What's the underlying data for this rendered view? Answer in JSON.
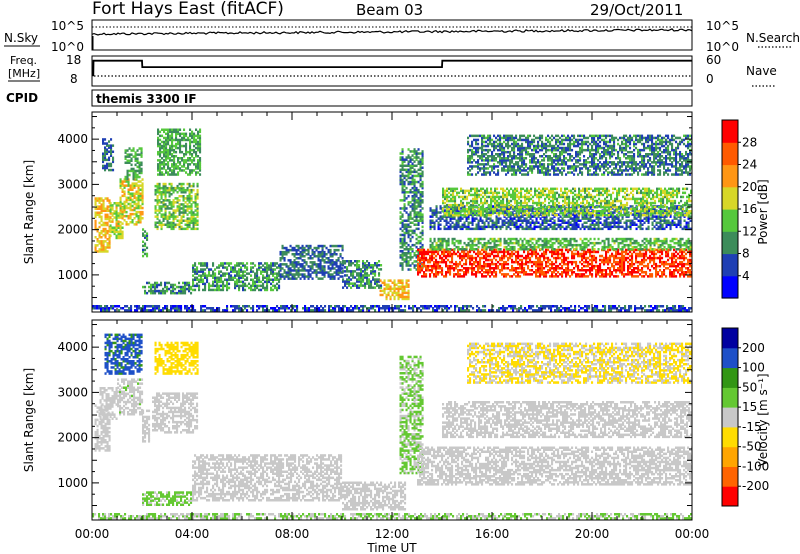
{
  "header": {
    "station": "Fort Hays East (fitACF)",
    "beam": "Beam 03",
    "date": "29/Oct/2011"
  },
  "noise_panel": {
    "left_label": "N.Sky",
    "right_label": "N.Search",
    "tick_top": "10^5",
    "tick_bottom": "10^0"
  },
  "freq_panel": {
    "left_label_1": "Freq.",
    "left_label_2": "[MHz]",
    "right_label": "Nave",
    "left_ticks": [
      "18",
      "8"
    ],
    "right_ticks": [
      "60",
      "0"
    ],
    "cpid_label": "CPID",
    "cpid_text": "themis 3300 IF"
  },
  "colors": {
    "power": [
      "#0000ff",
      "#1f3fb4",
      "#3c8c5a",
      "#55c83c",
      "#d7d728",
      "#ff9614",
      "#ff5a00",
      "#ff0000"
    ],
    "velocity": [
      "#ff0000",
      "#ff6400",
      "#ffa500",
      "#ffdc00",
      "#c8c8c8",
      "#64c832",
      "#329614",
      "#1e50c8",
      "#0000a0"
    ]
  },
  "chart_data": [
    {
      "type": "line",
      "name": "noise-and-frequency",
      "x_range": [
        0,
        24
      ],
      "series": [
        {
          "name": "Freq.",
          "x": [
            0,
            0.05,
            0.06,
            2.0,
            2.01,
            14.0,
            14.01,
            24.0
          ],
          "y": [
            10.0,
            10.0,
            16.8,
            16.8,
            13.8,
            13.8,
            16.8,
            16.8
          ]
        },
        {
          "name": "Nave",
          "x": [
            0,
            24
          ],
          "y": [
            18,
            18
          ]
        }
      ]
    },
    {
      "type": "heatmap",
      "name": "power",
      "xlabel": "Time UT",
      "ylabel": "Slant Range [km]",
      "xlim": [
        0,
        24
      ],
      "ylim": [
        180,
        4600
      ],
      "xticks": [
        "00:00",
        "04:00",
        "08:00",
        "12:00",
        "16:00",
        "20:00",
        "00:00"
      ],
      "yticks": [
        "1000",
        "2000",
        "3000",
        "4000"
      ],
      "colorbar_label": "Power [dB]",
      "colorbar_ticks": [
        "4",
        "8",
        "12",
        "16",
        "20",
        "24",
        "28"
      ],
      "colorbar_range": [
        0,
        32
      ],
      "regions": [
        {
          "t0": 0.1,
          "t1": 0.7,
          "r0": 1500,
          "r1": 2700,
          "value": 20
        },
        {
          "t0": 0.4,
          "t1": 0.8,
          "r0": 3300,
          "r1": 4000,
          "value": 8
        },
        {
          "t0": 0.7,
          "t1": 1.2,
          "r0": 1800,
          "r1": 2600,
          "value": 17
        },
        {
          "t0": 1.1,
          "t1": 2.0,
          "r0": 2100,
          "r1": 3100,
          "value": 18
        },
        {
          "t0": 1.3,
          "t1": 2.0,
          "r0": 3100,
          "r1": 3800,
          "value": 12
        },
        {
          "t0": 2.0,
          "t1": 2.2,
          "r0": 1400,
          "r1": 2000,
          "value": 11
        },
        {
          "t0": 2.5,
          "t1": 4.2,
          "r0": 2000,
          "r1": 3000,
          "value": 14
        },
        {
          "t0": 2.6,
          "t1": 4.3,
          "r0": 3200,
          "r1": 4200,
          "value": 12
        },
        {
          "t0": 2.0,
          "t1": 4.0,
          "r0": 580,
          "r1": 850,
          "value": 10
        },
        {
          "t0": 4.0,
          "t1": 7.5,
          "r0": 650,
          "r1": 1250,
          "value": 11
        },
        {
          "t0": 7.5,
          "t1": 10.0,
          "r0": 900,
          "r1": 1650,
          "value": 8
        },
        {
          "t0": 10.0,
          "t1": 11.6,
          "r0": 700,
          "r1": 1300,
          "value": 10
        },
        {
          "t0": 11.5,
          "t1": 12.7,
          "r0": 450,
          "r1": 900,
          "value": 20
        },
        {
          "t0": 12.3,
          "t1": 13.2,
          "r0": 1100,
          "r1": 3800,
          "value": 10
        },
        {
          "t0": 13.0,
          "t1": 24.0,
          "r0": 950,
          "r1": 1550,
          "value": 28
        },
        {
          "t0": 13.5,
          "t1": 24.0,
          "r0": 1550,
          "r1": 1800,
          "value": 13
        },
        {
          "t0": 13.5,
          "t1": 24.0,
          "r0": 2000,
          "r1": 2500,
          "value": 7
        },
        {
          "t0": 14.0,
          "t1": 24.0,
          "r0": 2300,
          "r1": 2900,
          "value": 15
        },
        {
          "t0": 15.0,
          "t1": 24.0,
          "r0": 3200,
          "r1": 4100,
          "value": 9
        },
        {
          "t0": 0.0,
          "t1": 24.0,
          "r0": 200,
          "r1": 330,
          "value": 6
        }
      ]
    },
    {
      "type": "heatmap",
      "name": "velocity",
      "xlabel": "Time UT",
      "ylabel": "Slant Range [km]",
      "xlim": [
        0,
        24
      ],
      "ylim": [
        180,
        4600
      ],
      "xticks": [
        "00:00",
        "04:00",
        "08:00",
        "12:00",
        "16:00",
        "20:00",
        "00:00"
      ],
      "yticks": [
        "1000",
        "2000",
        "3000",
        "4000"
      ],
      "colorbar_label": "Velocity [m s⁻¹]",
      "colorbar_ticks": [
        "200",
        "100",
        "50",
        "15",
        "-15",
        "-50",
        "-100",
        "-200"
      ],
      "colorbar_range": [
        -250,
        250
      ],
      "regions": [
        {
          "t0": 0.1,
          "t1": 0.7,
          "r0": 1700,
          "r1": 2700,
          "value": 0
        },
        {
          "t0": 0.3,
          "t1": 1.0,
          "r0": 2400,
          "r1": 3100,
          "value": 5
        },
        {
          "t0": 0.5,
          "t1": 2.0,
          "r0": 3400,
          "r1": 4300,
          "value": 150
        },
        {
          "t0": 1.0,
          "t1": 2.0,
          "r0": 2500,
          "r1": 3300,
          "value": 10
        },
        {
          "t0": 2.0,
          "t1": 2.3,
          "r0": 1900,
          "r1": 2600,
          "value": -5
        },
        {
          "t0": 2.4,
          "t1": 4.2,
          "r0": 2100,
          "r1": 3000,
          "value": 5
        },
        {
          "t0": 2.5,
          "t1": 4.2,
          "r0": 3400,
          "r1": 4100,
          "value": -60
        },
        {
          "t0": 2.0,
          "t1": 4.0,
          "r0": 500,
          "r1": 800,
          "value": 40
        },
        {
          "t0": 4.0,
          "t1": 10.0,
          "r0": 600,
          "r1": 1600,
          "value": 5
        },
        {
          "t0": 10.0,
          "t1": 12.5,
          "r0": 400,
          "r1": 1000,
          "value": -5
        },
        {
          "t0": 12.3,
          "t1": 13.2,
          "r0": 1200,
          "r1": 3800,
          "value": 35
        },
        {
          "t0": 13.0,
          "t1": 24.0,
          "r0": 950,
          "r1": 1800,
          "value": 0
        },
        {
          "t0": 14.0,
          "t1": 24.0,
          "r0": 2000,
          "r1": 2800,
          "value": 0
        },
        {
          "t0": 15.0,
          "t1": 24.0,
          "r0": 3200,
          "r1": 4100,
          "value": -30
        },
        {
          "t0": 0.0,
          "t1": 24.0,
          "r0": 200,
          "r1": 330,
          "value": 30
        }
      ]
    }
  ]
}
